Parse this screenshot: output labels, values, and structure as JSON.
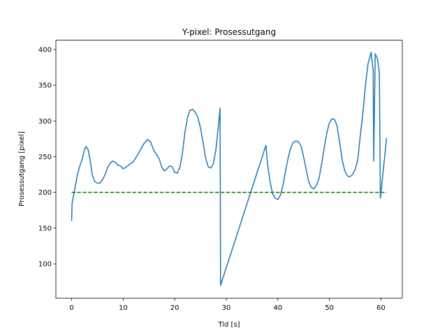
{
  "chart_data": {
    "type": "line",
    "title": "Y-pixel: Prosessutgang",
    "xlabel": "Tid [s]",
    "ylabel": "Prosessutgang [pixel]",
    "xlim": [
      -3.05,
      64.15
    ],
    "ylim": [
      52,
      413
    ],
    "xticks": [
      0,
      10,
      20,
      30,
      40,
      50,
      60
    ],
    "yticks": [
      100,
      150,
      200,
      250,
      300,
      350,
      400
    ],
    "series": [
      {
        "color": "#1f77b4",
        "linestyle": "solid",
        "x": [
          0,
          0.1,
          0.5,
          1,
          1.5,
          2,
          2.5,
          2.8,
          3.2,
          3.6,
          4,
          4.5,
          5,
          5.5,
          6,
          6.5,
          7,
          7.5,
          8,
          8.5,
          9,
          9.5,
          10,
          10.5,
          11,
          12,
          13,
          14,
          14.7,
          15.3,
          16,
          17,
          17.5,
          18,
          18.5,
          19,
          19.5,
          20,
          20.5,
          21,
          21.5,
          22,
          22.5,
          23,
          23.5,
          24,
          24.5,
          25,
          25.5,
          26,
          26.5,
          27,
          27.5,
          28,
          28.5,
          28.8,
          28.9,
          37.7,
          38,
          38.5,
          39,
          39.5,
          40,
          40.5,
          41,
          41.5,
          42,
          42.5,
          43,
          43.5,
          44,
          44.5,
          45,
          45.5,
          46,
          46.5,
          47,
          47.5,
          48,
          48.5,
          49,
          49.5,
          50,
          50.5,
          51,
          51.5,
          52,
          52.5,
          53,
          53.5,
          54,
          54.5,
          55,
          55.5,
          56,
          56.5,
          57,
          57.5,
          58.1,
          58.5,
          58.6,
          58.9,
          59.3,
          59.7,
          59.9,
          61.1
        ],
        "values": [
          160,
          185,
          200,
          220,
          235,
          245,
          260,
          264,
          260,
          245,
          225,
          215,
          213,
          213,
          218,
          225,
          235,
          241,
          244,
          242,
          238,
          237,
          233,
          235,
          238,
          243,
          255,
          268,
          274,
          271,
          258,
          247,
          235,
          230,
          233,
          237,
          236,
          228,
          227,
          235,
          255,
          285,
          305,
          315,
          316,
          312,
          305,
          290,
          270,
          248,
          236,
          234,
          240,
          260,
          295,
          318,
          70,
          266,
          240,
          215,
          198,
          192,
          190,
          196,
          210,
          230,
          248,
          262,
          270,
          272,
          271,
          265,
          250,
          232,
          215,
          207,
          205,
          210,
          220,
          240,
          262,
          283,
          297,
          303,
          302,
          293,
          270,
          245,
          230,
          223,
          222,
          225,
          232,
          245,
          280,
          310,
          350,
          380,
          396,
          370,
          244,
          394,
          388,
          368,
          192,
          276
        ]
      },
      {
        "color": "#008000",
        "linestyle": "dashed",
        "x": [
          0,
          61.1
        ],
        "values": [
          200,
          200
        ]
      }
    ]
  }
}
